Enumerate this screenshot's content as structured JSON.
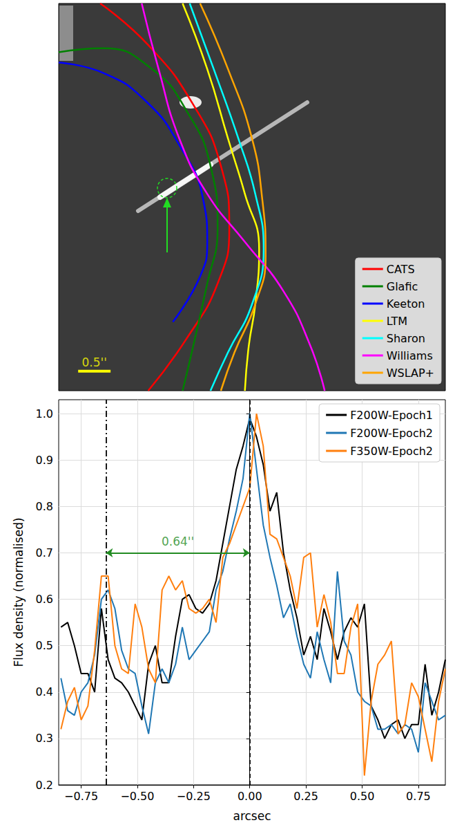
{
  "chart_data": [
    {
      "type": "line",
      "xlim": [
        0,
        5.96
      ],
      "ylim": [
        0,
        5.96
      ],
      "tick_labels": false,
      "legend": "bottom-right",
      "series": [
        {
          "name": "CATS",
          "color": "#ff0000",
          "x": [
            0.64,
            1.38,
            2.07,
            2.5,
            2.63,
            2.45,
            1.97,
            1.38
          ],
          "values": [
            5.96,
            5.32,
            4.41,
            3.46,
            2.5,
            1.65,
            0.8,
            0
          ]
        },
        {
          "name": "Glafic",
          "color": "#008000",
          "x": [
            0,
            0.69,
            1.44,
            1.97,
            2.34,
            2.45,
            2.29,
            1.91
          ],
          "values": [
            5.21,
            5.27,
            4.95,
            4.31,
            3.46,
            2.5,
            1.65,
            0
          ]
        },
        {
          "name": "Keeton",
          "color": "#0000ff",
          "x": [
            0,
            0.69,
            1.33,
            1.86,
            2.23,
            2.29,
            2.18,
            1.76
          ],
          "values": [
            5.05,
            4.89,
            4.47,
            3.78,
            2.93,
            2.29,
            1.76,
            1.06
          ]
        },
        {
          "name": "LTM",
          "color": "#ffff00",
          "x": [
            1.91,
            2.29,
            2.61,
            2.87,
            3.09,
            3.03,
            2.93,
            2.87
          ],
          "values": [
            5.96,
            4.95,
            3.88,
            3.03,
            2.18,
            1.33,
            0.69,
            0
          ]
        },
        {
          "name": "Sharon",
          "color": "#00ffff",
          "x": [
            2.02,
            2.39,
            2.77,
            3.03,
            3.16,
            2.98,
            2.61,
            2.34
          ],
          "values": [
            5.96,
            4.95,
            3.88,
            3.03,
            2.18,
            1.33,
            0.59,
            0
          ]
        },
        {
          "name": "Williams",
          "color": "#ff00ff",
          "x": [
            1.28,
            1.54,
            1.86,
            2.29,
            2.87,
            3.46,
            3.88,
            4.1
          ],
          "values": [
            5.96,
            4.95,
            3.88,
            3.03,
            2.29,
            1.54,
            0.69,
            0
          ]
        },
        {
          "name": "WSLAP+",
          "color": "#ffa500",
          "x": [
            2.18,
            2.61,
            2.98,
            3.14,
            3.19,
            3.03,
            2.71,
            2.5
          ],
          "values": [
            5.96,
            4.95,
            3.88,
            2.93,
            2.07,
            1.33,
            0.59,
            0
          ]
        }
      ],
      "scale_bar": {
        "label": "0.5''",
        "length": 0.5,
        "color": "#ffff00"
      }
    },
    {
      "type": "line",
      "xlabel": "arcsec",
      "ylabel": "Flux density (normalised)",
      "x": [
        -0.84,
        -0.81,
        -0.78,
        -0.75,
        -0.72,
        -0.69,
        -0.66,
        -0.63,
        -0.6,
        -0.57,
        -0.54,
        -0.51,
        -0.48,
        -0.45,
        -0.42,
        -0.39,
        -0.36,
        -0.33,
        -0.3,
        -0.27,
        -0.24,
        -0.21,
        -0.18,
        -0.15,
        -0.12,
        -0.09,
        -0.06,
        -0.03,
        0.0,
        0.03,
        0.06,
        0.09,
        0.12,
        0.15,
        0.18,
        0.21,
        0.24,
        0.27,
        0.3,
        0.33,
        0.36,
        0.39,
        0.42,
        0.45,
        0.48,
        0.51,
        0.54,
        0.57,
        0.6,
        0.63,
        0.66,
        0.69,
        0.72,
        0.75,
        0.78,
        0.81,
        0.84,
        0.87
      ],
      "series": [
        {
          "name": "F200W-Epoch1",
          "color": "#000000",
          "values": [
            0.54,
            0.55,
            0.5,
            0.44,
            0.44,
            0.4,
            0.58,
            0.47,
            0.43,
            0.42,
            0.4,
            0.37,
            0.34,
            0.46,
            0.5,
            0.42,
            0.42,
            0.52,
            0.6,
            0.61,
            0.58,
            0.57,
            0.59,
            0.64,
            0.72,
            0.8,
            0.88,
            0.93,
            0.99,
            0.95,
            0.89,
            0.79,
            0.83,
            0.7,
            0.62,
            0.56,
            0.48,
            0.52,
            0.47,
            0.58,
            0.53,
            0.47,
            0.53,
            0.56,
            0.54,
            0.59,
            0.37,
            0.34,
            0.3,
            0.33,
            0.34,
            0.3,
            0.33,
            0.33,
            0.46,
            0.35,
            0.4,
            0.47
          ]
        },
        {
          "name": "F200W-Epoch2",
          "color": "#1f77b4",
          "values": [
            0.43,
            0.36,
            0.35,
            0.4,
            0.42,
            0.48,
            0.6,
            0.62,
            0.58,
            0.49,
            0.45,
            0.44,
            0.37,
            0.31,
            0.42,
            0.45,
            0.42,
            0.46,
            0.54,
            0.47,
            0.49,
            0.51,
            0.53,
            0.62,
            0.66,
            0.73,
            0.79,
            0.86,
            1.0,
            0.88,
            0.76,
            0.69,
            0.63,
            0.56,
            0.59,
            0.52,
            0.46,
            0.43,
            0.53,
            0.47,
            0.42,
            0.66,
            0.51,
            0.48,
            0.4,
            0.38,
            0.37,
            0.32,
            0.32,
            0.33,
            0.31,
            0.33,
            0.32,
            0.27,
            0.42,
            0.38,
            0.34,
            0.35
          ]
        },
        {
          "name": "F350W-Epoch2",
          "color": "#ff7f0e",
          "values": [
            0.32,
            0.38,
            0.41,
            0.34,
            0.37,
            0.49,
            0.65,
            0.65,
            0.5,
            0.45,
            0.44,
            0.59,
            0.54,
            0.45,
            0.42,
            0.62,
            0.65,
            0.62,
            0.64,
            0.58,
            0.57,
            0.58,
            0.6,
            0.55,
            0.69,
            0.72,
            0.76,
            0.8,
            0.84,
            1.0,
            0.93,
            0.74,
            0.73,
            0.69,
            0.65,
            0.58,
            0.69,
            0.7,
            0.54,
            0.61,
            0.55,
            0.44,
            0.44,
            0.54,
            0.59,
            0.22,
            0.38,
            0.46,
            0.48,
            0.51,
            0.31,
            0.33,
            0.42,
            0.39,
            0.32,
            0.25,
            0.38,
            0.45
          ]
        }
      ],
      "xlim": [
        -0.85,
        0.87
      ],
      "xticks": [
        {
          "value": -0.75,
          "label": "−0.75"
        },
        {
          "value": -0.5,
          "label": "−0.50"
        },
        {
          "value": -0.25,
          "label": "−0.25"
        },
        {
          "value": 0,
          "label": "0.00"
        },
        {
          "value": 0.25,
          "label": "0.25"
        },
        {
          "value": 0.5,
          "label": "0.50"
        },
        {
          "value": 0.75,
          "label": "0.75"
        }
      ],
      "ylim": [
        0.2,
        1.03
      ],
      "yticks": [
        0.2,
        0.3,
        0.4,
        0.5,
        0.6,
        0.7,
        0.8,
        0.9,
        {
          "value": 1,
          "label": "1.0"
        }
      ],
      "grid": true,
      "legend": "upper-right",
      "vlines": [
        {
          "x": -0.64,
          "line_style": "dashdot"
        },
        {
          "x": 0,
          "line_style": "dashed"
        }
      ],
      "annotation": {
        "text": "0.64''",
        "from": -0.64,
        "to": 0,
        "y": 0.7,
        "color": "#228b22"
      }
    }
  ]
}
